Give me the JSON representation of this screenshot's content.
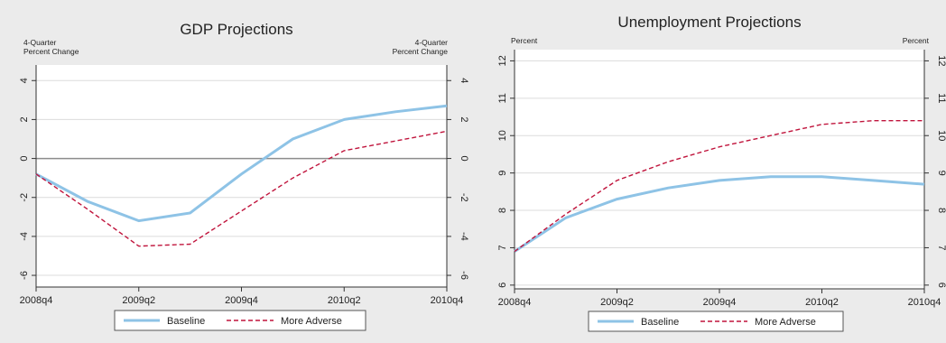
{
  "colors": {
    "baseline": "#8EC3E6",
    "adverse": "#C0143C",
    "grid": "#DCDCDC",
    "zero_line": "#8C8C8C",
    "outer_bg": "#EBEBEB",
    "plot_bg": "#FFFFFF"
  },
  "chart_data": [
    {
      "type": "line",
      "title": "GDP Projections",
      "ylabel_left": "4-Quarter\nPercent Change",
      "ylabel_right": "4-Quarter\nPercent Change",
      "x": [
        "2008q4",
        "2009q1",
        "2009q2",
        "2009q3",
        "2009q4",
        "2010q1",
        "2010q2",
        "2010q3",
        "2010q4"
      ],
      "x_tick_labels": [
        "2008q4",
        "2009q2",
        "2009q4",
        "2010q2",
        "2010q4"
      ],
      "yticks": [
        -6,
        -4,
        -2,
        0,
        2,
        4
      ],
      "ylim": [
        -6.6,
        4.8
      ],
      "zero_line": true,
      "grid": true,
      "legend_placement": "bottom",
      "series": [
        {
          "name": "Baseline",
          "style": "solid",
          "values": [
            -0.8,
            -2.2,
            -3.2,
            -2.8,
            -0.8,
            1.0,
            2.0,
            2.4,
            2.7
          ]
        },
        {
          "name": "More Adverse",
          "style": "dashed",
          "values": [
            -0.8,
            -2.6,
            -4.5,
            -4.4,
            -2.7,
            -1.0,
            0.4,
            0.9,
            1.4
          ]
        }
      ]
    },
    {
      "type": "line",
      "title": "Unemployment Projections",
      "ylabel_left": "Percent",
      "ylabel_right": "Percent",
      "x": [
        "2008q4",
        "2009q1",
        "2009q2",
        "2009q3",
        "2009q4",
        "2010q1",
        "2010q2",
        "2010q3",
        "2010q4"
      ],
      "x_tick_labels": [
        "2008q4",
        "2009q2",
        "2009q4",
        "2010q2",
        "2010q4"
      ],
      "yticks": [
        6,
        7,
        8,
        9,
        10,
        11,
        12
      ],
      "ylim": [
        5.9,
        12.3
      ],
      "zero_line": false,
      "grid": true,
      "legend_placement": "bottom",
      "series": [
        {
          "name": "Baseline",
          "style": "solid",
          "values": [
            6.9,
            7.8,
            8.3,
            8.6,
            8.8,
            8.9,
            8.9,
            8.8,
            8.7
          ]
        },
        {
          "name": "More Adverse",
          "style": "dashed",
          "values": [
            6.9,
            7.9,
            8.8,
            9.3,
            9.7,
            10.0,
            10.3,
            10.4,
            10.4
          ]
        }
      ]
    }
  ]
}
